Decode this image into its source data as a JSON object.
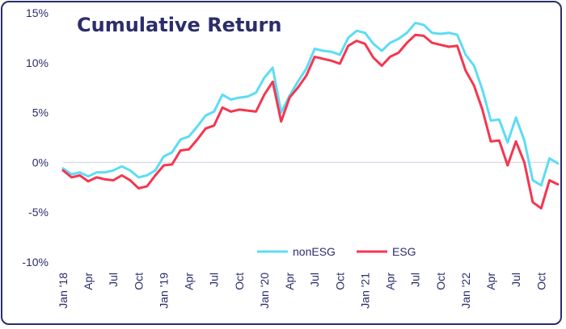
{
  "chart_data": {
    "type": "line",
    "title": "Cumulative Return",
    "xlabel": "",
    "ylabel": "",
    "ylim": [
      -10,
      15
    ],
    "y_ticks": [
      "15%",
      "10%",
      "5%",
      "0%",
      "-5%",
      "-10%"
    ],
    "y_tick_values": [
      15,
      10,
      5,
      0,
      -5,
      -10
    ],
    "x_tick_labels": [
      "Jan '18",
      "Apr",
      "Jul",
      "Oct",
      "Jan '19",
      "Apr",
      "Jul",
      "Oct",
      "Jan '20",
      "Apr",
      "Jul",
      "Oct",
      "Jan '21",
      "Apr",
      "Jul",
      "Oct",
      "Jan '22",
      "Apr",
      "Jul",
      "Oct"
    ],
    "x": [
      "2018-01",
      "2018-02",
      "2018-03",
      "2018-04",
      "2018-05",
      "2018-06",
      "2018-07",
      "2018-08",
      "2018-09",
      "2018-10",
      "2018-11",
      "2018-12",
      "2019-01",
      "2019-02",
      "2019-03",
      "2019-04",
      "2019-05",
      "2019-06",
      "2019-07",
      "2019-08",
      "2019-09",
      "2019-10",
      "2019-11",
      "2019-12",
      "2020-01",
      "2020-02",
      "2020-03",
      "2020-04",
      "2020-05",
      "2020-06",
      "2020-07",
      "2020-08",
      "2020-09",
      "2020-10",
      "2020-11",
      "2020-12",
      "2021-01",
      "2021-02",
      "2021-03",
      "2021-04",
      "2021-05",
      "2021-06",
      "2021-07",
      "2021-08",
      "2021-09",
      "2021-10",
      "2021-11",
      "2021-12",
      "2022-01",
      "2022-02",
      "2022-03",
      "2022-04",
      "2022-05",
      "2022-06",
      "2022-07",
      "2022-08",
      "2022-09",
      "2022-10",
      "2022-11",
      "2022-12"
    ],
    "grid": "zero-line only",
    "legend_position": "bottom-center",
    "series": [
      {
        "name": "nonESG",
        "color": "#5ddcf5",
        "values": [
          -0.6,
          -1.2,
          -1.0,
          -1.4,
          -1.0,
          -1.0,
          -0.8,
          -0.4,
          -0.8,
          -1.5,
          -1.3,
          -0.8,
          0.6,
          1.0,
          2.3,
          2.6,
          3.6,
          4.7,
          5.1,
          6.8,
          6.3,
          6.5,
          6.6,
          7.0,
          8.5,
          9.5,
          5.0,
          6.7,
          8.1,
          9.4,
          11.4,
          11.2,
          11.1,
          10.8,
          12.5,
          13.2,
          13.0,
          11.9,
          11.2,
          12.0,
          12.4,
          13.0,
          14.0,
          13.8,
          13.0,
          12.9,
          13.0,
          12.8,
          10.8,
          9.7,
          7.3,
          4.2,
          4.3,
          2.0,
          4.5,
          2.2,
          -1.8,
          -2.3,
          0.4,
          -0.1
        ]
      },
      {
        "name": "ESG",
        "color": "#f5364f",
        "values": [
          -0.8,
          -1.5,
          -1.3,
          -1.9,
          -1.5,
          -1.7,
          -1.8,
          -1.3,
          -1.8,
          -2.6,
          -2.4,
          -1.3,
          -0.3,
          -0.2,
          1.2,
          1.3,
          2.3,
          3.4,
          3.7,
          5.5,
          5.1,
          5.3,
          5.2,
          5.1,
          6.8,
          8.1,
          4.1,
          6.5,
          7.5,
          8.7,
          10.6,
          10.4,
          10.2,
          9.9,
          11.7,
          12.2,
          11.9,
          10.5,
          9.7,
          10.6,
          11.0,
          12.0,
          12.8,
          12.7,
          12.0,
          11.8,
          11.6,
          11.7,
          9.2,
          7.7,
          5.3,
          2.1,
          2.2,
          -0.3,
          2.1,
          0.0,
          -4.0,
          -4.6,
          -1.8,
          -2.2
        ]
      }
    ]
  }
}
